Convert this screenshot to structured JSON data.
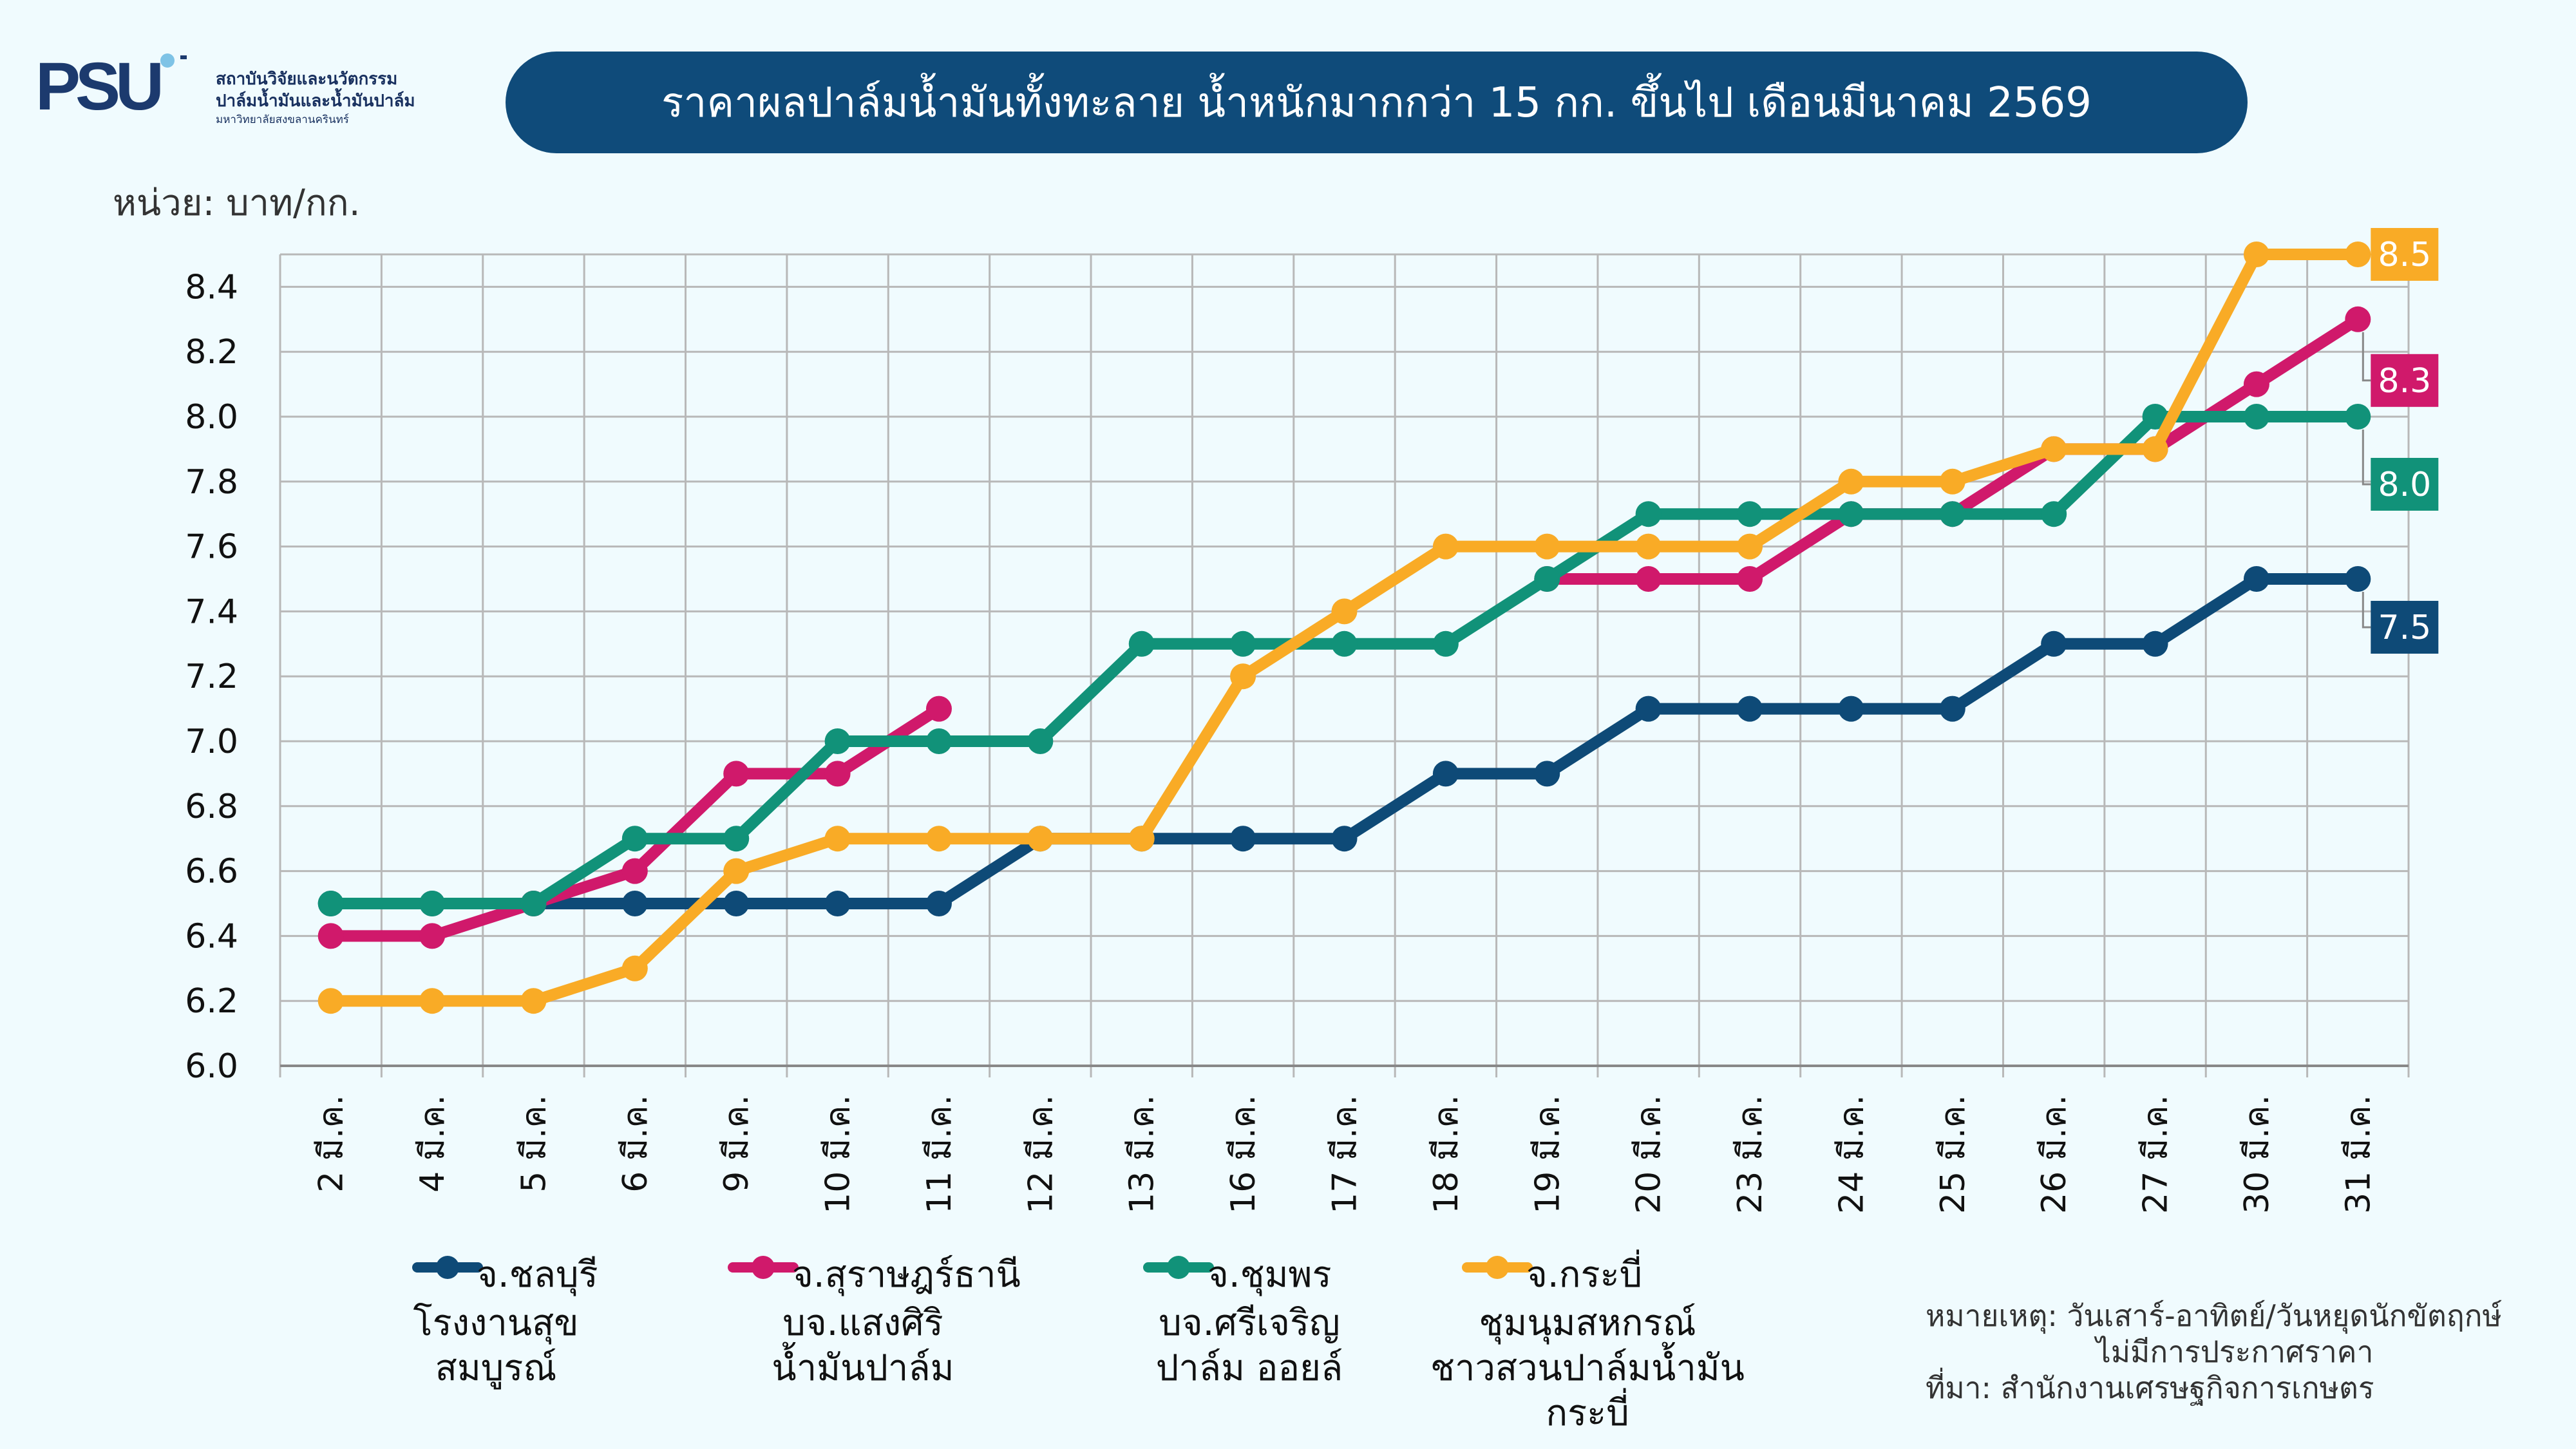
{
  "logo": {
    "mark": "PSU",
    "line1": "สถาบันวิจัยและนวัตกรรม",
    "line2": "ปาล์มน้ำมันและน้ำมันปาล์ม",
    "line3": "มหาวิทยาลัยสงขลานครินทร์",
    "accent_color": "#1c3a6e",
    "dot_color": "#7ec3e6"
  },
  "header": {
    "title": "ราคาผลปาล์มน้ำมันทั้งทะลาย น้ำหนักมากกว่า 15 กก. ขึ้นไป เดือนมีนาคม 2569"
  },
  "unit": "หน่วย: บาท/กก.",
  "chart_data": {
    "type": "line",
    "title": "ราคาผลปาล์มน้ำมันทั้งทะลาย น้ำหนักมากกว่า 15 กก. ขึ้นไป เดือนมีนาคม 2569",
    "ylabel": "หน่วย: บาท/กก.",
    "xlabel": "",
    "ylim": [
      6.0,
      8.5
    ],
    "yticks": [
      "6.0",
      "6.2",
      "6.4",
      "6.6",
      "6.8",
      "7.0",
      "7.2",
      "7.4",
      "7.6",
      "7.8",
      "8.0",
      "8.2",
      "8.4"
    ],
    "grid": true,
    "legend": "bottom",
    "categories": [
      "2 มี.ค.",
      "4 มี.ค.",
      "5 มี.ค.",
      "6 มี.ค.",
      "9 มี.ค.",
      "10 มี.ค.",
      "11 มี.ค.",
      "12 มี.ค.",
      "13 มี.ค.",
      "16 มี.ค.",
      "17 มี.ค.",
      "18 มี.ค.",
      "19 มี.ค.",
      "20 มี.ค.",
      "23 มี.ค.",
      "24 มี.ค.",
      "25 มี.ค.",
      "26 มี.ค.",
      "27 มี.ค.",
      "30 มี.ค.",
      "31 มี.ค."
    ],
    "series": [
      {
        "name": "จ.ชลบุรี",
        "sub": [
          "โรงงานสุข",
          "สมบูรณ์"
        ],
        "color": "#0e4a77",
        "values": [
          6.5,
          6.5,
          6.5,
          6.5,
          6.5,
          6.5,
          6.5,
          6.7,
          6.7,
          6.7,
          6.7,
          6.9,
          6.9,
          7.1,
          7.1,
          7.1,
          7.1,
          7.3,
          7.3,
          7.5,
          7.5
        ],
        "end_label": "7.5"
      },
      {
        "name": "จ.สุราษฎร์ธานี",
        "sub": [
          "บจ.แสงศิริ",
          "น้ำมันปาล์ม"
        ],
        "color": "#d0196b",
        "values": [
          6.4,
          6.4,
          6.5,
          6.6,
          6.9,
          6.9,
          7.1,
          null,
          null,
          null,
          null,
          null,
          7.5,
          7.5,
          7.5,
          7.7,
          7.7,
          7.9,
          7.9,
          8.1,
          8.3
        ],
        "end_label": "8.3"
      },
      {
        "name": "จ.ชุมพร",
        "sub": [
          "บจ.ศรีเจริญ",
          "ปาล์ม ออยล์"
        ],
        "color": "#119279",
        "values": [
          6.5,
          6.5,
          6.5,
          6.7,
          6.7,
          7.0,
          7.0,
          7.0,
          7.3,
          7.3,
          7.3,
          7.3,
          7.5,
          7.7,
          7.7,
          7.7,
          7.7,
          7.7,
          8.0,
          8.0,
          8.0
        ],
        "end_label": "8.0"
      },
      {
        "name": "จ.กระบี่",
        "sub": [
          "ชุมนุมสหกรณ์",
          "ชาวสวนปาล์มน้ำมัน",
          "กระบี่"
        ],
        "color": "#f9ab26",
        "values": [
          6.2,
          6.2,
          6.2,
          6.3,
          6.6,
          6.7,
          6.7,
          6.7,
          6.7,
          7.2,
          7.4,
          7.6,
          7.6,
          7.6,
          7.6,
          7.8,
          7.8,
          7.9,
          7.9,
          8.5,
          8.5
        ],
        "end_label": "8.5"
      }
    ]
  },
  "note": {
    "line1": "หมายเหตุ: วันเสาร์-อาทิตย์/วันหยุดนักขัตฤกษ์",
    "line2": "ไม่มีการประกาศราคา",
    "line3": "ที่มา: สำนักงานเศรษฐกิจการเกษตร"
  }
}
